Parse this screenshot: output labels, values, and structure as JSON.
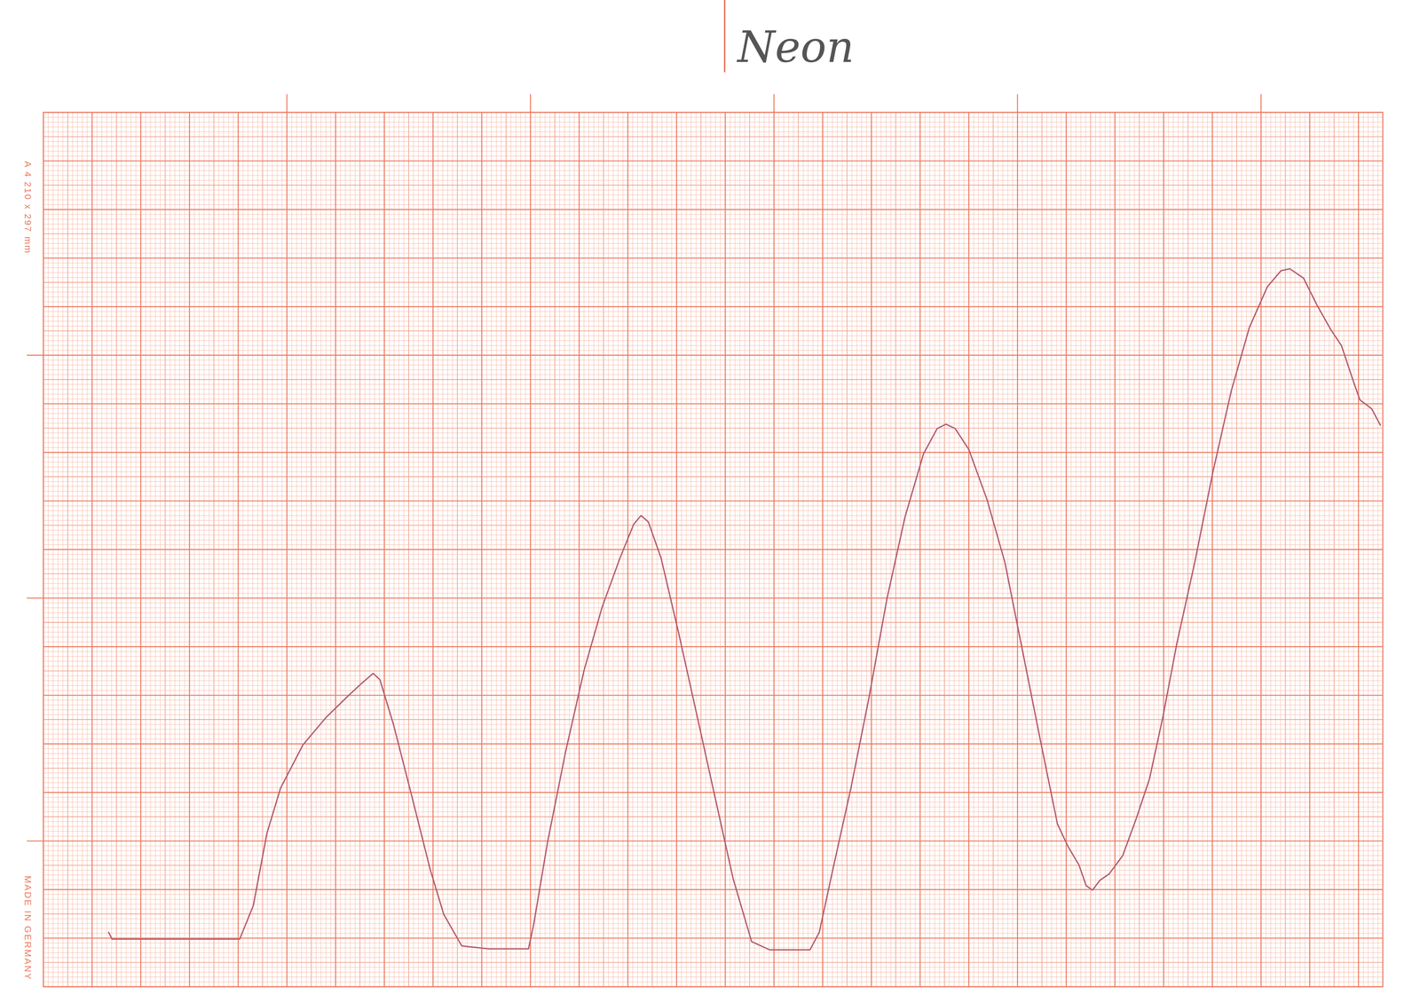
{
  "chart_data": {
    "type": "line",
    "title": "Neon",
    "annotations": [
      "A 4 210 x 297 mm",
      "MADE IN GERMANY"
    ],
    "x": [
      1.34,
      1.41,
      4.03,
      4.31,
      4.59,
      4.87,
      5.33,
      5.8,
      6.26,
      6.54,
      6.77,
      6.91,
      7.19,
      7.57,
      7.94,
      8.22,
      8.59,
      9.14,
      9.96,
      10.07,
      10.35,
      10.72,
      11.1,
      11.47,
      11.84,
      12.12,
      12.27,
      12.42,
      12.68,
      13.05,
      13.42,
      13.79,
      14.16,
      14.54,
      14.91,
      15.74,
      15.93,
      16.21,
      16.58,
      16.95,
      17.32,
      17.69,
      18.07,
      18.35,
      18.53,
      18.72,
      19.0,
      19.37,
      19.74,
      20.11,
      20.48,
      20.82,
      21.04,
      21.26,
      21.41,
      21.54,
      21.69,
      21.88,
      22.16,
      22.43,
      22.71,
      22.99,
      23.27,
      23.64,
      24.01,
      24.39,
      24.76,
      25.13,
      25.41,
      25.59,
      25.87,
      26.15,
      26.43,
      26.65,
      26.9,
      27.03,
      27.27,
      27.45
    ],
    "values": [
      1.12,
      0.98,
      0.98,
      1.67,
      3.16,
      4.09,
      4.98,
      5.54,
      5.99,
      6.25,
      6.45,
      6.32,
      5.39,
      3.9,
      2.42,
      1.49,
      0.84,
      0.78,
      0.78,
      1.3,
      2.97,
      4.83,
      6.51,
      7.81,
      8.83,
      9.52,
      9.7,
      9.57,
      8.83,
      7.25,
      5.58,
      3.9,
      2.23,
      0.93,
      0.76,
      0.76,
      1.12,
      2.42,
      4.09,
      5.95,
      7.99,
      9.67,
      10.97,
      11.49,
      11.58,
      11.49,
      11.06,
      10.04,
      8.74,
      6.88,
      5.02,
      3.35,
      2.88,
      2.51,
      2.08,
      1.99,
      2.19,
      2.32,
      2.7,
      3.44,
      4.28,
      5.58,
      7.06,
      8.74,
      10.59,
      12.27,
      13.57,
      14.41,
      14.74,
      14.78,
      14.59,
      14.03,
      13.53,
      13.2,
      12.45,
      12.08,
      11.9,
      11.56
    ],
    "color": "#b35c70",
    "xlim": [
      0,
      27.5
    ],
    "ylim": [
      0,
      18
    ],
    "xticks": [
      0,
      1,
      2,
      3,
      4,
      5,
      6,
      7,
      8,
      9,
      10,
      11,
      12,
      13,
      14,
      15,
      16,
      17,
      18,
      19,
      20,
      21,
      22,
      23,
      24,
      25,
      26,
      27
    ],
    "yticks": [
      0,
      1,
      2,
      3,
      4,
      5,
      6,
      7,
      8,
      9,
      10,
      11,
      12,
      13,
      14,
      15,
      16,
      17,
      18
    ],
    "grid": true,
    "tick_labels": false,
    "line_style": "solid"
  }
}
